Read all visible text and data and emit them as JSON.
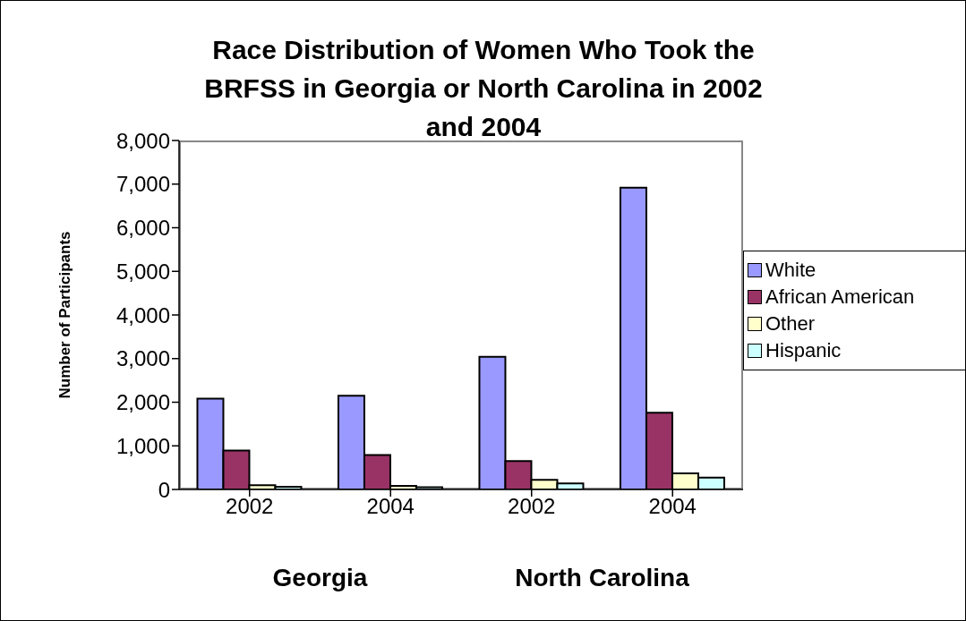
{
  "chart_data": {
    "type": "bar",
    "title": "Race Distribution of Women Who Took the BRFSS in Georgia or North Carolina in 2002 and 2004",
    "ylabel": "Number of Participants",
    "categories": [
      "2002",
      "2004",
      "2002",
      "2004"
    ],
    "annotations": [
      "Georgia",
      "North Carolina"
    ],
    "series": [
      {
        "name": "White",
        "color": "#9999ff",
        "values": [
          2080,
          2150,
          3040,
          6920
        ]
      },
      {
        "name": "African American",
        "color": "#993366",
        "values": [
          890,
          790,
          650,
          1760
        ]
      },
      {
        "name": "Other",
        "color": "#ffffcc",
        "values": [
          100,
          80,
          220,
          370
        ]
      },
      {
        "name": "Hispanic",
        "color": "#ccffff",
        "values": [
          60,
          50,
          140,
          270
        ]
      }
    ],
    "ylim": [
      0,
      8000
    ],
    "yticks": [
      0,
      {
        "value": 1000,
        "label": "1,000"
      },
      {
        "value": 2000,
        "label": "2,000"
      },
      {
        "value": 3000,
        "label": "3,000"
      },
      {
        "value": 4000,
        "label": "4,000"
      },
      {
        "value": 5000,
        "label": "5,000"
      },
      {
        "value": 6000,
        "label": "6,000"
      },
      {
        "value": 7000,
        "label": "7,000"
      },
      {
        "value": 8000,
        "label": "8,000"
      }
    ],
    "grid": false,
    "legend": "right"
  }
}
